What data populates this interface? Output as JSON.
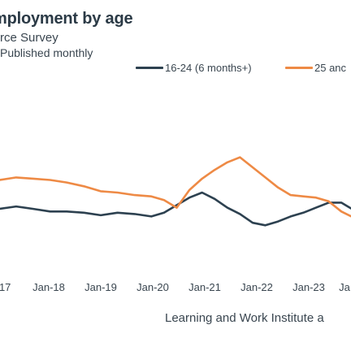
{
  "header": {
    "title": "mployment by age",
    "subtitle": "rce Survey",
    "note": "Published monthly"
  },
  "footer": {
    "source": "Learning and Work Institute a"
  },
  "colors": {
    "series_dark": "#2d4150",
    "series_orange": "#ee8a45",
    "text": "#3a4650"
  },
  "chart_data": {
    "type": "line",
    "title": "mployment by age",
    "xlabel": "",
    "ylabel": "",
    "x_ticks": [
      "-17",
      "Jan-18",
      "Jan-19",
      "Jan-20",
      "Jan-21",
      "Jan-22",
      "Jan-23",
      "Ja"
    ],
    "x": [
      2017.0,
      2017.33,
      2017.67,
      2018.0,
      2018.33,
      2018.67,
      2019.0,
      2019.33,
      2019.67,
      2020.0,
      2020.25,
      2020.5,
      2020.75,
      2021.0,
      2021.25,
      2021.5,
      2021.75,
      2022.0,
      2022.25,
      2022.5,
      2022.75,
      2023.0,
      2023.25,
      2023.5,
      2023.75,
      2024.0
    ],
    "ylim": [
      0,
      100
    ],
    "grid": false,
    "legend_position": "top",
    "series": [
      {
        "name": "16-24 (6 months+)",
        "color": "#2d4150",
        "values": [
          47,
          49,
          47,
          45,
          45,
          44,
          42,
          44,
          43,
          41,
          44,
          50,
          56,
          60,
          55,
          48,
          43,
          36,
          34,
          37,
          41,
          44,
          48,
          52,
          52,
          46
        ]
      },
      {
        "name": "25 anc",
        "color": "#ee8a45",
        "values": [
          70,
          72,
          71,
          70,
          68,
          65,
          61,
          60,
          58,
          57,
          54,
          48,
          62,
          71,
          78,
          84,
          88,
          80,
          72,
          64,
          58,
          57,
          56,
          53,
          45,
          40
        ]
      }
    ]
  }
}
